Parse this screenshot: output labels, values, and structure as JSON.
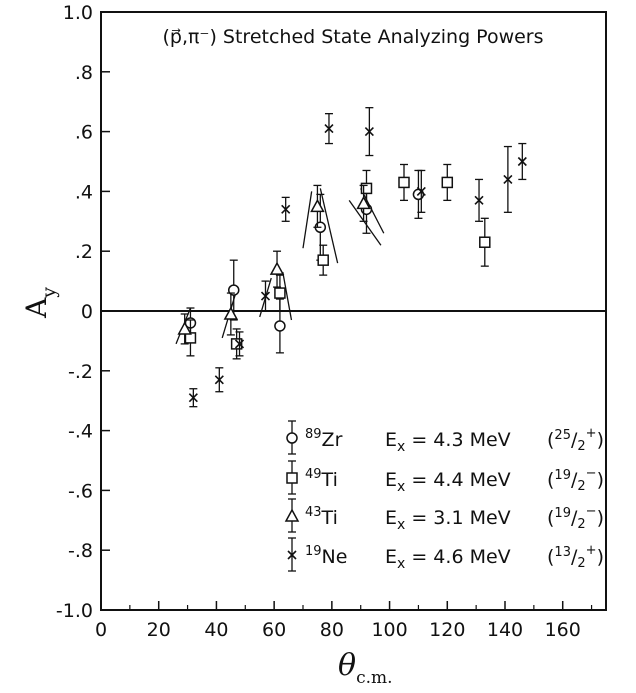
{
  "chart_data": {
    "type": "scatter",
    "title": "(p⃗,π⁻) Stretched State Analyzing Powers",
    "xlabel": "θ",
    "xlabel_sub": "c.m.",
    "ylabel": "A",
    "ylabel_sub": "y",
    "xlim": [
      0,
      175
    ],
    "ylim": [
      -1.0,
      1.0
    ],
    "x_ticks": [
      {
        "value": 0,
        "label": "0"
      },
      {
        "value": 20,
        "label": "20"
      },
      {
        "value": 40,
        "label": "40"
      },
      {
        "value": 60,
        "label": "60"
      },
      {
        "value": 80,
        "label": "80"
      },
      {
        "value": 100,
        "label": "100"
      },
      {
        "value": 120,
        "label": "120"
      },
      {
        "value": 140,
        "label": "140"
      },
      {
        "value": 160,
        "label": "160"
      }
    ],
    "y_ticks": [
      {
        "value": 1.0,
        "label": "1.0"
      },
      {
        "value": 0.8,
        "label": ".8"
      },
      {
        "value": 0.6,
        "label": ".6"
      },
      {
        "value": 0.4,
        "label": ".4"
      },
      {
        "value": 0.2,
        "label": ".2"
      },
      {
        "value": 0.0,
        "label": "0"
      },
      {
        "value": -0.2,
        "label": "-.2"
      },
      {
        "value": -0.4,
        "label": "-.4"
      },
      {
        "value": -0.6,
        "label": "-.6"
      },
      {
        "value": -0.8,
        "label": "-.8"
      },
      {
        "value": -1.0,
        "label": "-1.0"
      }
    ],
    "zero_line": 0,
    "grid": false,
    "legend_position": "bottom-right",
    "series": [
      {
        "marker": "circle",
        "legend": {
          "mass": "89",
          "element": "Zr",
          "energy": "4.3 MeV",
          "spin_num": "25",
          "spin_den": "2",
          "parity": "+"
        },
        "points": [
          {
            "x": 31,
            "y": -0.04,
            "err": 0.05
          },
          {
            "x": 46,
            "y": 0.07,
            "err": 0.1
          },
          {
            "x": 62,
            "y": -0.05,
            "err": 0.09
          },
          {
            "x": 76,
            "y": 0.28,
            "err": 0.11
          },
          {
            "x": 92,
            "y": 0.34,
            "err": 0.08
          },
          {
            "x": 110,
            "y": 0.39,
            "err": 0.08
          }
        ],
        "curves": [
          [
            [
              76,
              0.41
            ],
            [
              82,
              0.16
            ]
          ]
        ]
      },
      {
        "marker": "square",
        "legend": {
          "mass": "49",
          "element": "Ti",
          "energy": "4.4 MeV",
          "spin_num": "19",
          "spin_den": "2",
          "parity": "−"
        },
        "points": [
          {
            "x": 31,
            "y": -0.09,
            "err": 0.06
          },
          {
            "x": 47,
            "y": -0.11,
            "err": 0.05
          },
          {
            "x": 62,
            "y": 0.06,
            "err": 0.06
          },
          {
            "x": 77,
            "y": 0.17,
            "err": 0.05
          },
          {
            "x": 92,
            "y": 0.41,
            "err": 0.06
          },
          {
            "x": 105,
            "y": 0.43,
            "err": 0.06
          },
          {
            "x": 120,
            "y": 0.43,
            "err": 0.06
          },
          {
            "x": 133,
            "y": 0.23,
            "err": 0.08
          }
        ],
        "curves": [
          [
            [
              63,
              0.13
            ],
            [
              66,
              -0.03
            ]
          ]
        ]
      },
      {
        "marker": "triangle",
        "legend": {
          "mass": "43",
          "element": "Ti",
          "energy": "3.1 MeV",
          "spin_num": "19",
          "spin_den": "2",
          "parity": "−"
        },
        "points": [
          {
            "x": 29,
            "y": -0.06,
            "err": 0.05
          },
          {
            "x": 45,
            "y": -0.01,
            "err": 0.07
          },
          {
            "x": 61,
            "y": 0.14,
            "err": 0.06
          },
          {
            "x": 75,
            "y": 0.35,
            "err": 0.07
          },
          {
            "x": 91,
            "y": 0.36,
            "err": 0.06
          }
        ],
        "curves": [
          [
            [
              26,
              -0.11
            ],
            [
              31,
              0.01
            ]
          ],
          [
            [
              42,
              -0.09
            ],
            [
              47,
              0.07
            ]
          ],
          [
            [
              70,
              0.21
            ],
            [
              73,
              0.4
            ]
          ],
          [
            [
              86,
              0.37
            ],
            [
              97,
              0.22
            ]
          ],
          [
            [
              90,
              0.41
            ],
            [
              98,
              0.26
            ]
          ]
        ]
      },
      {
        "marker": "cross",
        "legend": {
          "mass": "19",
          "element": "Ne",
          "energy": "4.6 MeV",
          "spin_num": "13",
          "spin_den": "2",
          "parity": "+"
        },
        "points": [
          {
            "x": 32,
            "y": -0.29,
            "err": 0.03
          },
          {
            "x": 41,
            "y": -0.23,
            "err": 0.04
          },
          {
            "x": 48,
            "y": -0.11,
            "err": 0.04
          },
          {
            "x": 57,
            "y": 0.05,
            "err": 0.05
          },
          {
            "x": 64,
            "y": 0.34,
            "err": 0.04
          },
          {
            "x": 79,
            "y": 0.61,
            "err": 0.05
          },
          {
            "x": 93,
            "y": 0.6,
            "err": 0.08
          },
          {
            "x": 111,
            "y": 0.4,
            "err": 0.07
          },
          {
            "x": 131,
            "y": 0.37,
            "err": 0.07
          },
          {
            "x": 141,
            "y": 0.44,
            "err": 0.11
          },
          {
            "x": 146,
            "y": 0.5,
            "err": 0.06
          }
        ],
        "curves": [
          [
            [
              55,
              -0.02
            ],
            [
              59,
              0.11
            ]
          ]
        ]
      }
    ]
  }
}
